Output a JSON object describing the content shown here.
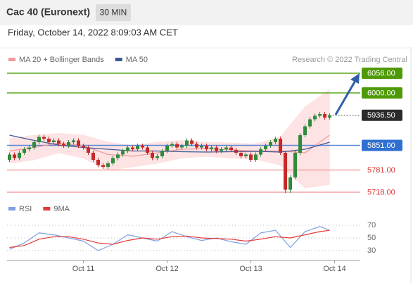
{
  "header": {
    "title": "Cac 40 (Euronext)",
    "interval": "30 MIN",
    "timestamp": "Friday, October 14, 2022 8:09:03 AM CET"
  },
  "chart_data": [
    {
      "type": "candlestick",
      "credit": "Research © 2022 Trading Central",
      "ylim": [
        5700,
        6080
      ],
      "xlim": [
        -0.5,
        71.2
      ],
      "up_color": "#2f8a3a",
      "down_color": "#c62828",
      "candles": {
        "x": [
          0,
          1,
          2,
          3,
          4,
          5,
          6,
          7,
          8,
          9,
          10,
          11,
          12,
          13,
          14,
          15,
          16,
          17,
          18,
          19,
          20,
          21,
          22,
          23,
          24,
          25,
          26,
          27,
          28,
          29,
          30,
          31,
          32,
          33,
          34,
          35,
          36,
          37,
          38,
          39,
          40,
          41,
          42,
          43,
          44,
          45,
          46,
          47,
          48,
          49,
          50,
          51,
          52,
          53,
          54,
          55,
          56,
          57,
          58,
          59,
          60,
          61,
          62,
          63,
          64,
          65
        ],
        "open": [
          5810,
          5825,
          5815,
          5830,
          5840,
          5845,
          5860,
          5875,
          5870,
          5860,
          5865,
          5855,
          5850,
          5860,
          5865,
          5850,
          5845,
          5830,
          5810,
          5795,
          5790,
          5800,
          5815,
          5825,
          5835,
          5845,
          5840,
          5850,
          5845,
          5830,
          5815,
          5820,
          5835,
          5850,
          5855,
          5845,
          5850,
          5865,
          5855,
          5845,
          5850,
          5840,
          5845,
          5835,
          5840,
          5845,
          5838,
          5830,
          5820,
          5825,
          5810,
          5825,
          5840,
          5850,
          5860,
          5870,
          5830,
          5725,
          5760,
          5830,
          5880,
          5905,
          5925,
          5935,
          5940,
          5930
        ],
        "high": [
          5831,
          5831,
          5836,
          5846,
          5851,
          5866,
          5881,
          5881,
          5876,
          5871,
          5871,
          5861,
          5866,
          5871,
          5871,
          5856,
          5851,
          5836,
          5816,
          5801,
          5806,
          5821,
          5831,
          5841,
          5851,
          5851,
          5856,
          5856,
          5851,
          5836,
          5826,
          5841,
          5856,
          5861,
          5861,
          5856,
          5871,
          5871,
          5861,
          5856,
          5856,
          5851,
          5851,
          5846,
          5851,
          5851,
          5844,
          5836,
          5831,
          5831,
          5831,
          5846,
          5856,
          5866,
          5876,
          5876,
          5836,
          5766,
          5836,
          5886,
          5911,
          5931,
          5941,
          5946,
          5946,
          5942
        ],
        "low": [
          5804,
          5809,
          5809,
          5824,
          5834,
          5839,
          5854,
          5864,
          5854,
          5854,
          5849,
          5844,
          5844,
          5854,
          5844,
          5839,
          5824,
          5804,
          5789,
          5784,
          5784,
          5794,
          5809,
          5819,
          5829,
          5834,
          5834,
          5839,
          5824,
          5809,
          5809,
          5814,
          5829,
          5844,
          5839,
          5839,
          5844,
          5849,
          5839,
          5839,
          5834,
          5834,
          5829,
          5829,
          5834,
          5832,
          5824,
          5814,
          5814,
          5804,
          5804,
          5819,
          5834,
          5844,
          5854,
          5824,
          5716,
          5716,
          5754,
          5824,
          5874,
          5899,
          5919,
          5929,
          5924,
          5924
        ],
        "close": [
          5825,
          5815,
          5830,
          5840,
          5845,
          5860,
          5875,
          5870,
          5860,
          5865,
          5855,
          5850,
          5860,
          5865,
          5850,
          5845,
          5830,
          5810,
          5795,
          5790,
          5800,
          5815,
          5825,
          5835,
          5845,
          5840,
          5850,
          5845,
          5830,
          5815,
          5820,
          5835,
          5850,
          5855,
          5845,
          5850,
          5865,
          5855,
          5845,
          5850,
          5840,
          5845,
          5835,
          5840,
          5845,
          5838,
          5830,
          5820,
          5825,
          5810,
          5825,
          5840,
          5850,
          5860,
          5870,
          5830,
          5725,
          5760,
          5830,
          5880,
          5905,
          5925,
          5935,
          5940,
          5930,
          5936.5
        ]
      },
      "series": [
        {
          "name": "MA 20 + Bollinger Bands",
          "color": "#f19a9a",
          "band_color": "#fde3e3",
          "x": [
            0,
            5,
            10,
            15,
            20,
            25,
            30,
            35,
            40,
            45,
            50,
            55,
            60,
            65
          ],
          "values": [
            5835,
            5845,
            5858,
            5850,
            5825,
            5820,
            5830,
            5840,
            5842,
            5838,
            5835,
            5835,
            5830,
            5880
          ],
          "upper": [
            5870,
            5880,
            5885,
            5880,
            5860,
            5850,
            5860,
            5865,
            5860,
            5858,
            5855,
            5875,
            5960,
            6010
          ],
          "lower": [
            5800,
            5810,
            5830,
            5815,
            5780,
            5790,
            5800,
            5815,
            5820,
            5815,
            5812,
            5795,
            5730,
            5740
          ]
        },
        {
          "name": "MA 50",
          "color": "#3d5a96",
          "x": [
            0,
            5,
            10,
            15,
            20,
            25,
            30,
            35,
            40,
            45,
            50,
            55,
            60,
            65
          ],
          "values": [
            5880,
            5865,
            5852,
            5845,
            5840,
            5835,
            5835,
            5833,
            5832,
            5833,
            5834,
            5832,
            5840,
            5860
          ]
        }
      ],
      "levels": [
        {
          "value": 6056,
          "label": "6056.00",
          "color": "#5aa81a",
          "box": "#4e9a06",
          "style": "solid"
        },
        {
          "value": 6000,
          "label": "6000.00",
          "color": "#5aa81a",
          "box": "#4e9a06",
          "style": "solid"
        },
        {
          "value": 5936.5,
          "label": "5936.50",
          "color": "#555555",
          "box": "#2b2b2b",
          "style": "dotted"
        },
        {
          "value": 5851,
          "label": "5851.00",
          "color": "#5b8ad6",
          "box": "#2f6fd0",
          "style": "solid"
        },
        {
          "value": 5781,
          "label": "5781.00",
          "color": "#f4a3a3",
          "text": "#e03131",
          "style": "solid"
        },
        {
          "value": 5718,
          "label": "5718.00",
          "color": "#f4a3a3",
          "text": "#e03131",
          "style": "solid"
        }
      ]
    },
    {
      "type": "line",
      "ylim": [
        20,
        80
      ],
      "yticks": [
        30,
        50,
        70
      ],
      "xlim": [
        -0.5,
        71.2
      ],
      "xticks": [
        {
          "value": 15,
          "label": "Oct 11"
        },
        {
          "value": 32,
          "label": "Oct 12"
        },
        {
          "value": 49,
          "label": "Oct 13"
        },
        {
          "value": 66,
          "label": "Oct 14"
        }
      ],
      "series": [
        {
          "name": "RSI",
          "color": "#7f9fe0",
          "x": [
            0,
            3,
            6,
            9,
            12,
            15,
            18,
            21,
            24,
            27,
            30,
            33,
            36,
            39,
            42,
            45,
            48,
            51,
            54,
            57,
            60,
            63,
            65
          ],
          "values": [
            32,
            42,
            58,
            55,
            50,
            45,
            30,
            40,
            55,
            50,
            45,
            60,
            52,
            46,
            50,
            44,
            40,
            58,
            62,
            35,
            60,
            68,
            62
          ]
        },
        {
          "name": "9MA",
          "color": "#e53935",
          "x": [
            0,
            3,
            6,
            9,
            12,
            15,
            18,
            21,
            24,
            27,
            30,
            33,
            36,
            39,
            42,
            45,
            48,
            51,
            54,
            57,
            60,
            63,
            65
          ],
          "values": [
            35,
            38,
            48,
            52,
            52,
            48,
            42,
            40,
            46,
            50,
            48,
            52,
            53,
            50,
            49,
            48,
            45,
            48,
            52,
            50,
            55,
            60,
            62
          ]
        }
      ]
    }
  ]
}
